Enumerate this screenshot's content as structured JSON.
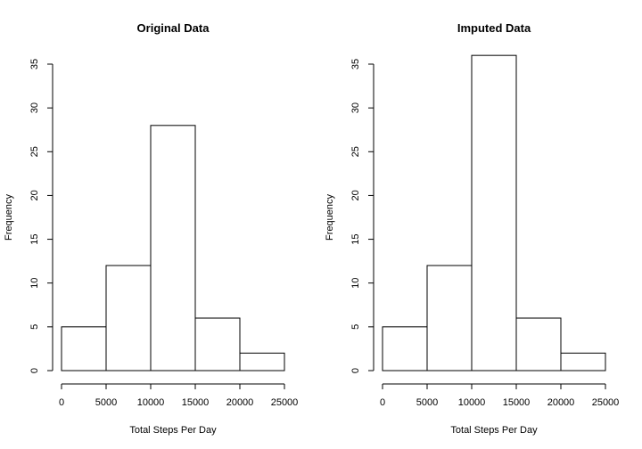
{
  "chart_data": [
    {
      "type": "bar",
      "title": "Original Data",
      "xlabel": "Total Steps Per Day",
      "ylabel": "Frequency",
      "bins": [
        [
          0,
          5000
        ],
        [
          5000,
          10000
        ],
        [
          10000,
          15000
        ],
        [
          15000,
          20000
        ],
        [
          20000,
          25000
        ]
      ],
      "values": [
        5,
        12,
        28,
        6,
        2
      ],
      "xlim": [
        0,
        25000
      ],
      "ylim": [
        0,
        35
      ],
      "xticks": [
        "0",
        "5000",
        "10000",
        "15000",
        "20000",
        "25000"
      ],
      "yticks": [
        "0",
        "5",
        "10",
        "15",
        "20",
        "25",
        "30",
        "35"
      ],
      "grid": false
    },
    {
      "type": "bar",
      "title": "Imputed Data",
      "xlabel": "Total Steps Per Day",
      "ylabel": "Frequency",
      "bins": [
        [
          0,
          5000
        ],
        [
          5000,
          10000
        ],
        [
          10000,
          15000
        ],
        [
          15000,
          20000
        ],
        [
          20000,
          25000
        ]
      ],
      "values": [
        5,
        12,
        36,
        6,
        2
      ],
      "xlim": [
        0,
        25000
      ],
      "ylim": [
        0,
        35
      ],
      "xticks": [
        "0",
        "5000",
        "10000",
        "15000",
        "20000",
        "25000"
      ],
      "yticks": [
        "0",
        "5",
        "10",
        "15",
        "20",
        "25",
        "30",
        "35"
      ],
      "grid": false
    }
  ]
}
